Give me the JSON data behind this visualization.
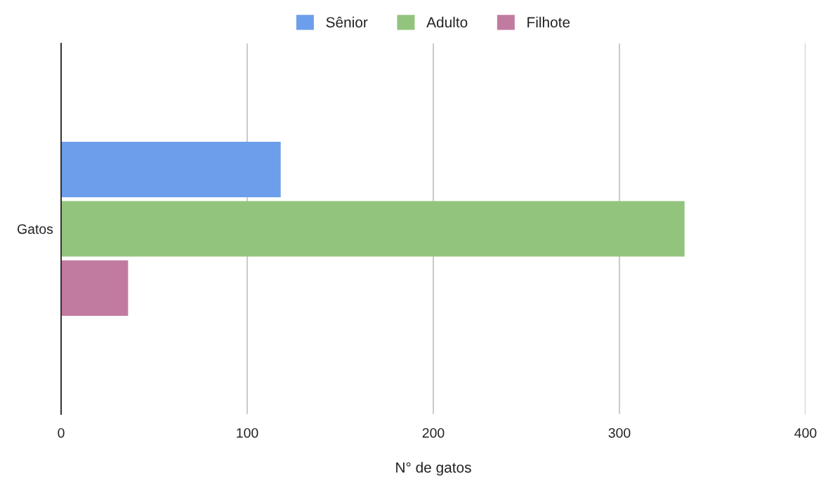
{
  "chart_data": {
    "type": "bar",
    "orientation": "horizontal",
    "categories": [
      "Gatos"
    ],
    "series": [
      {
        "name": "Sênior",
        "color": "#6d9eeb",
        "values": [
          118
        ]
      },
      {
        "name": "Adulto",
        "color": "#93c47d",
        "values": [
          335
        ]
      },
      {
        "name": "Filhote",
        "color": "#c27ba0",
        "values": [
          36
        ]
      }
    ],
    "xlabel": "N° de gatos",
    "xlim": [
      0,
      400
    ],
    "xticks": [
      0,
      100,
      200,
      300,
      400
    ],
    "grid": "x",
    "legend": "top"
  }
}
